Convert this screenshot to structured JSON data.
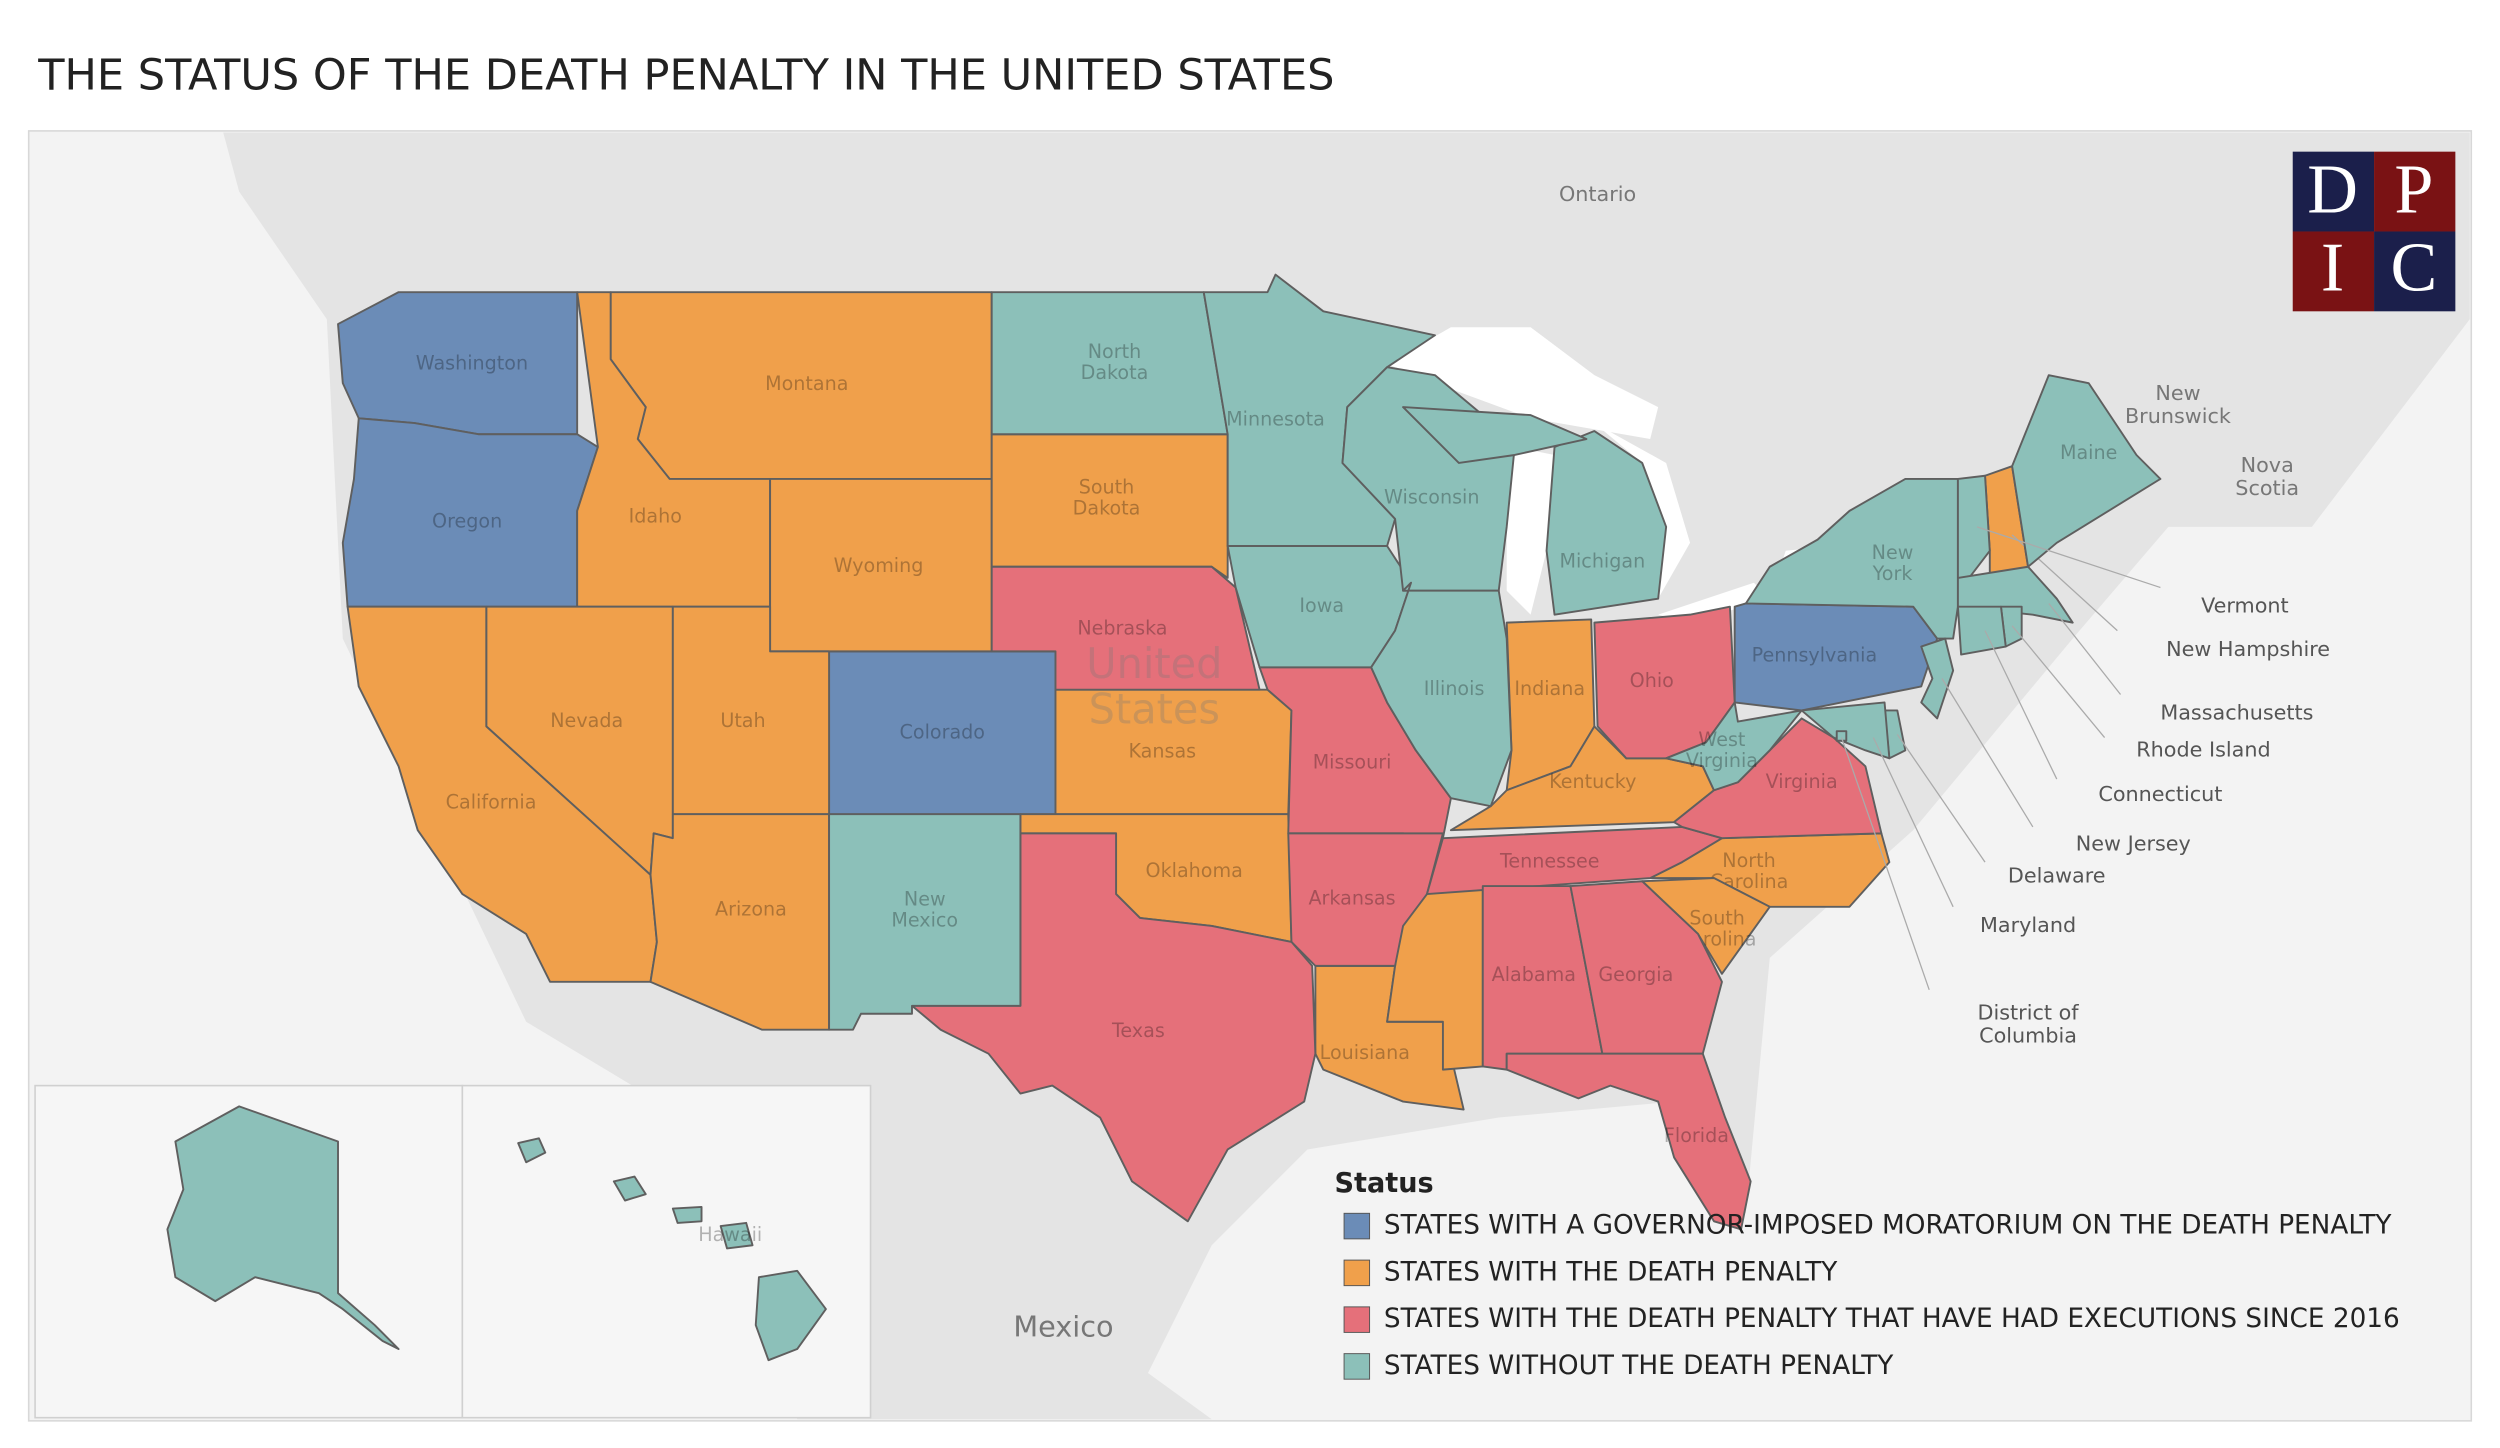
{
  "title": "THE STATUS OF THE DEATH PENALTY IN THE UNITED STATES",
  "place_labels": [
    "Ontario",
    "New\nBrunswick",
    "Nova\nScotia",
    "United\nStates",
    "Mexico"
  ],
  "logo": {
    "letters": [
      "D",
      "P",
      "I",
      "C"
    ]
  },
  "legend": {
    "title": "Status",
    "items": [
      {
        "label": "STATES WITH A GOVERNOR-IMPOSED MORATORIUM ON THE DEATH PENALTY",
        "color": "#6b8cb7",
        "states": [
          "Washington",
          "Oregon",
          "Colorado",
          "Pennsylvania"
        ]
      },
      {
        "label": "STATES WITH THE DEATH PENALTY",
        "color": "#f0a04b",
        "states": [
          "Montana",
          "Idaho",
          "Wyoming",
          "Nevada",
          "Utah",
          "California",
          "Arizona",
          "South\nDakota",
          "Kansas",
          "Oklahoma",
          "Indiana",
          "Kentucky",
          "Louisiana",
          null,
          "North\nCarolina",
          "South\nCarolina",
          "New Hampshire"
        ]
      },
      {
        "label": "STATES WITH THE DEATH PENALTY THAT HAVE HAD EXECUTIONS SINCE 2016",
        "color": "#e5707a",
        "states": [
          "Nebraska",
          "Missouri",
          "Arkansas",
          "Texas",
          "Tennessee",
          "Alabama",
          "Georgia",
          "Florida",
          "Ohio",
          "Virginia"
        ]
      },
      {
        "label": "STATES WITHOUT THE DEATH PENALTY",
        "color": "#8cc0b9",
        "states": [
          "North\nDakota",
          "Minnesota",
          "Iowa",
          "Wisconsin",
          "Illinois",
          "Michigan",
          "West\nVirginia",
          "New\nYork",
          "Maine",
          "Vermont",
          "Massachusetts",
          "Rhode Island",
          "Connecticut",
          "New Jersey",
          "Delaware",
          "Maryland",
          "District of\nColumbia",
          "New\nMexico",
          null,
          "Hawaii"
        ]
      }
    ]
  }
}
